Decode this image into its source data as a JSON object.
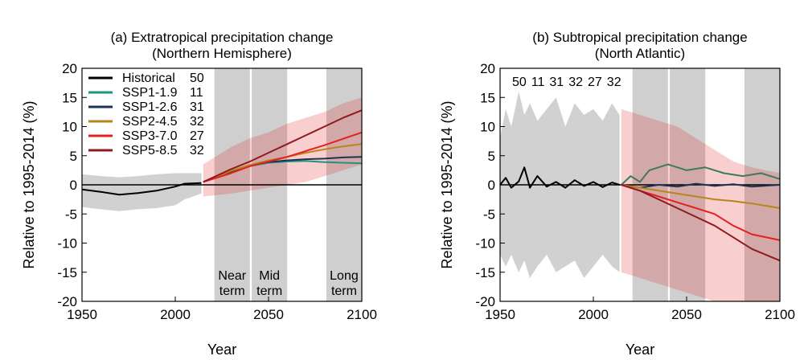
{
  "chart_data": [
    {
      "type": "line",
      "title": "(a) Extratropical precipitation change",
      "subtitle": "(Northern Hemisphere)",
      "xlabel": "Year",
      "ylabel": "Relative to 1995-2014 (%)",
      "xlim": [
        1950,
        2100
      ],
      "ylim": [
        -20,
        20
      ],
      "xticks": [
        1950,
        2000,
        2050,
        2100
      ],
      "yticks": [
        20,
        15,
        10,
        5,
        0,
        -5,
        -10,
        -15,
        -20
      ],
      "legend_position": "top-left",
      "periods": [
        {
          "label": [
            "Near",
            "term"
          ],
          "start": 2021,
          "end": 2040
        },
        {
          "label": [
            "Mid",
            "term"
          ],
          "start": 2041,
          "end": 2060
        },
        {
          "label": [
            "Long",
            "term"
          ],
          "start": 2081,
          "end": 2100
        }
      ],
      "series": [
        {
          "name": "Historical",
          "count": "50",
          "color": "#000000",
          "x": [
            1950,
            1960,
            1970,
            1980,
            1990,
            2000,
            2005,
            2014
          ],
          "y": [
            -0.8,
            -1.2,
            -1.7,
            -1.4,
            -1.0,
            -0.3,
            0.2,
            0.3
          ],
          "band_lo": [
            -3.8,
            -4.2,
            -4.5,
            -4.2,
            -4.0,
            -3.5,
            -2.5,
            -1.5
          ],
          "band_hi": [
            1.8,
            1.5,
            1.3,
            1.5,
            1.8,
            2.0,
            2.0,
            2.0
          ]
        },
        {
          "name": "SSP1-1.9",
          "count": "11",
          "color": "#1e9583",
          "x": [
            2015,
            2030,
            2040,
            2050,
            2060,
            2070,
            2080,
            2090,
            2100
          ],
          "y": [
            0.5,
            2.2,
            3.2,
            3.8,
            4.0,
            4.1,
            3.9,
            3.8,
            3.7
          ]
        },
        {
          "name": "SSP1-2.6",
          "count": "31",
          "color": "#1d3354",
          "x": [
            2015,
            2030,
            2040,
            2050,
            2060,
            2070,
            2080,
            2090,
            2100
          ],
          "y": [
            0.5,
            2.3,
            3.3,
            3.9,
            4.2,
            4.4,
            4.5,
            4.7,
            4.8
          ]
        },
        {
          "name": "SSP2-4.5",
          "count": "32",
          "color": "#b7861b",
          "x": [
            2015,
            2030,
            2040,
            2050,
            2060,
            2070,
            2080,
            2090,
            2100
          ],
          "y": [
            0.5,
            2.4,
            3.4,
            4.2,
            4.8,
            5.5,
            6.1,
            6.6,
            7.0
          ]
        },
        {
          "name": "SSP3-7.0",
          "count": "27",
          "color": "#e52020",
          "x": [
            2015,
            2030,
            2040,
            2050,
            2060,
            2070,
            2080,
            2090,
            2100
          ],
          "y": [
            0.5,
            2.0,
            3.2,
            4.0,
            4.8,
            5.8,
            6.8,
            7.9,
            9.0
          ],
          "band_lo": [
            -2.0,
            -1.5,
            -1.0,
            -0.5,
            0.0,
            0.5,
            1.5,
            2.5,
            3.5
          ],
          "band_hi": [
            3.5,
            6.5,
            8.0,
            9.0,
            10.5,
            11.5,
            12.5,
            14.0,
            15.0
          ]
        },
        {
          "name": "SSP5-8.5",
          "count": "32",
          "color": "#8f1b21",
          "x": [
            2015,
            2030,
            2040,
            2050,
            2060,
            2070,
            2080,
            2090,
            2100
          ],
          "y": [
            0.5,
            2.7,
            4.0,
            5.5,
            7.0,
            8.5,
            10.0,
            11.5,
            12.8
          ]
        }
      ]
    },
    {
      "type": "line",
      "title": "(b) Subtropical precipitation change",
      "subtitle": "(North Atlantic)",
      "xlabel": "Year",
      "ylabel": "Relative to 1995-2014 (%)",
      "xlim": [
        1950,
        2100
      ],
      "ylim": [
        -20,
        20
      ],
      "xticks": [
        1950,
        2000,
        2050,
        2100
      ],
      "yticks": [
        20,
        15,
        10,
        5,
        0,
        -5,
        -10,
        -15,
        -20
      ],
      "legend_position": "top-left",
      "periods": [
        {
          "start": 2021,
          "end": 2040
        },
        {
          "start": 2041,
          "end": 2060
        },
        {
          "start": 2081,
          "end": 2100
        }
      ],
      "series": [
        {
          "name": "Historical",
          "count": "50",
          "color": "#000000",
          "x": [
            1950,
            1953,
            1956,
            1960,
            1963,
            1966,
            1970,
            1975,
            1980,
            1985,
            1990,
            1995,
            2000,
            2005,
            2010,
            2014
          ],
          "y": [
            0.0,
            1.2,
            -0.5,
            0.6,
            3.0,
            -0.5,
            1.5,
            -0.3,
            0.5,
            -0.5,
            0.8,
            -0.2,
            0.5,
            -0.4,
            0.4,
            0.0
          ],
          "band_lo": [
            -12,
            -14,
            -12,
            -15,
            -13,
            -16,
            -14,
            -12,
            -15,
            -14,
            -13,
            -16,
            -14,
            -12,
            -14,
            -15
          ],
          "band_hi": [
            8,
            13,
            10,
            16,
            12,
            14,
            11,
            13,
            15,
            10,
            14,
            12,
            13,
            11,
            14,
            12
          ]
        },
        {
          "name": "SSP1-1.9",
          "count": "11",
          "color": "#3e7a60",
          "x": [
            2015,
            2020,
            2025,
            2030,
            2040,
            2050,
            2060,
            2070,
            2080,
            2090,
            2100
          ],
          "y": [
            0.0,
            1.5,
            0.5,
            2.5,
            3.5,
            2.5,
            3.0,
            2.0,
            1.5,
            2.0,
            1.0
          ]
        },
        {
          "name": "SSP1-2.6",
          "count": "31",
          "color": "#1d3354",
          "x": [
            2015,
            2025,
            2035,
            2045,
            2055,
            2065,
            2075,
            2085,
            2100
          ],
          "y": [
            0.0,
            -0.5,
            0.0,
            -0.3,
            0.2,
            -0.2,
            0.1,
            -0.3,
            0.0
          ]
        },
        {
          "name": "SSP2-4.5",
          "count": "32",
          "color": "#b7861b",
          "x": [
            2015,
            2025,
            2035,
            2045,
            2055,
            2065,
            2075,
            2085,
            2100
          ],
          "y": [
            0.0,
            -0.5,
            -1.0,
            -1.5,
            -2.0,
            -2.5,
            -2.8,
            -3.2,
            -4.0
          ]
        },
        {
          "name": "SSP3-7.0",
          "count": "27",
          "color": "#e52020",
          "x": [
            2015,
            2025,
            2035,
            2045,
            2055,
            2065,
            2075,
            2085,
            2100
          ],
          "y": [
            0.0,
            -1.0,
            -2.0,
            -3.0,
            -4.0,
            -5.0,
            -7.0,
            -8.5,
            -9.5
          ],
          "band_lo": [
            -15,
            -16,
            -17,
            -18,
            -19,
            -20,
            -20,
            -20,
            -20
          ],
          "band_hi": [
            13,
            12,
            11,
            10,
            8,
            6,
            4,
            3,
            2
          ]
        },
        {
          "name": "SSP5-8.5",
          "count": "32",
          "color": "#8f1b21",
          "x": [
            2015,
            2025,
            2035,
            2045,
            2055,
            2065,
            2075,
            2085,
            2100
          ],
          "y": [
            0.0,
            -1.0,
            -2.5,
            -4.0,
            -5.5,
            -7.0,
            -9.0,
            -11.0,
            -13.0
          ]
        }
      ]
    }
  ]
}
